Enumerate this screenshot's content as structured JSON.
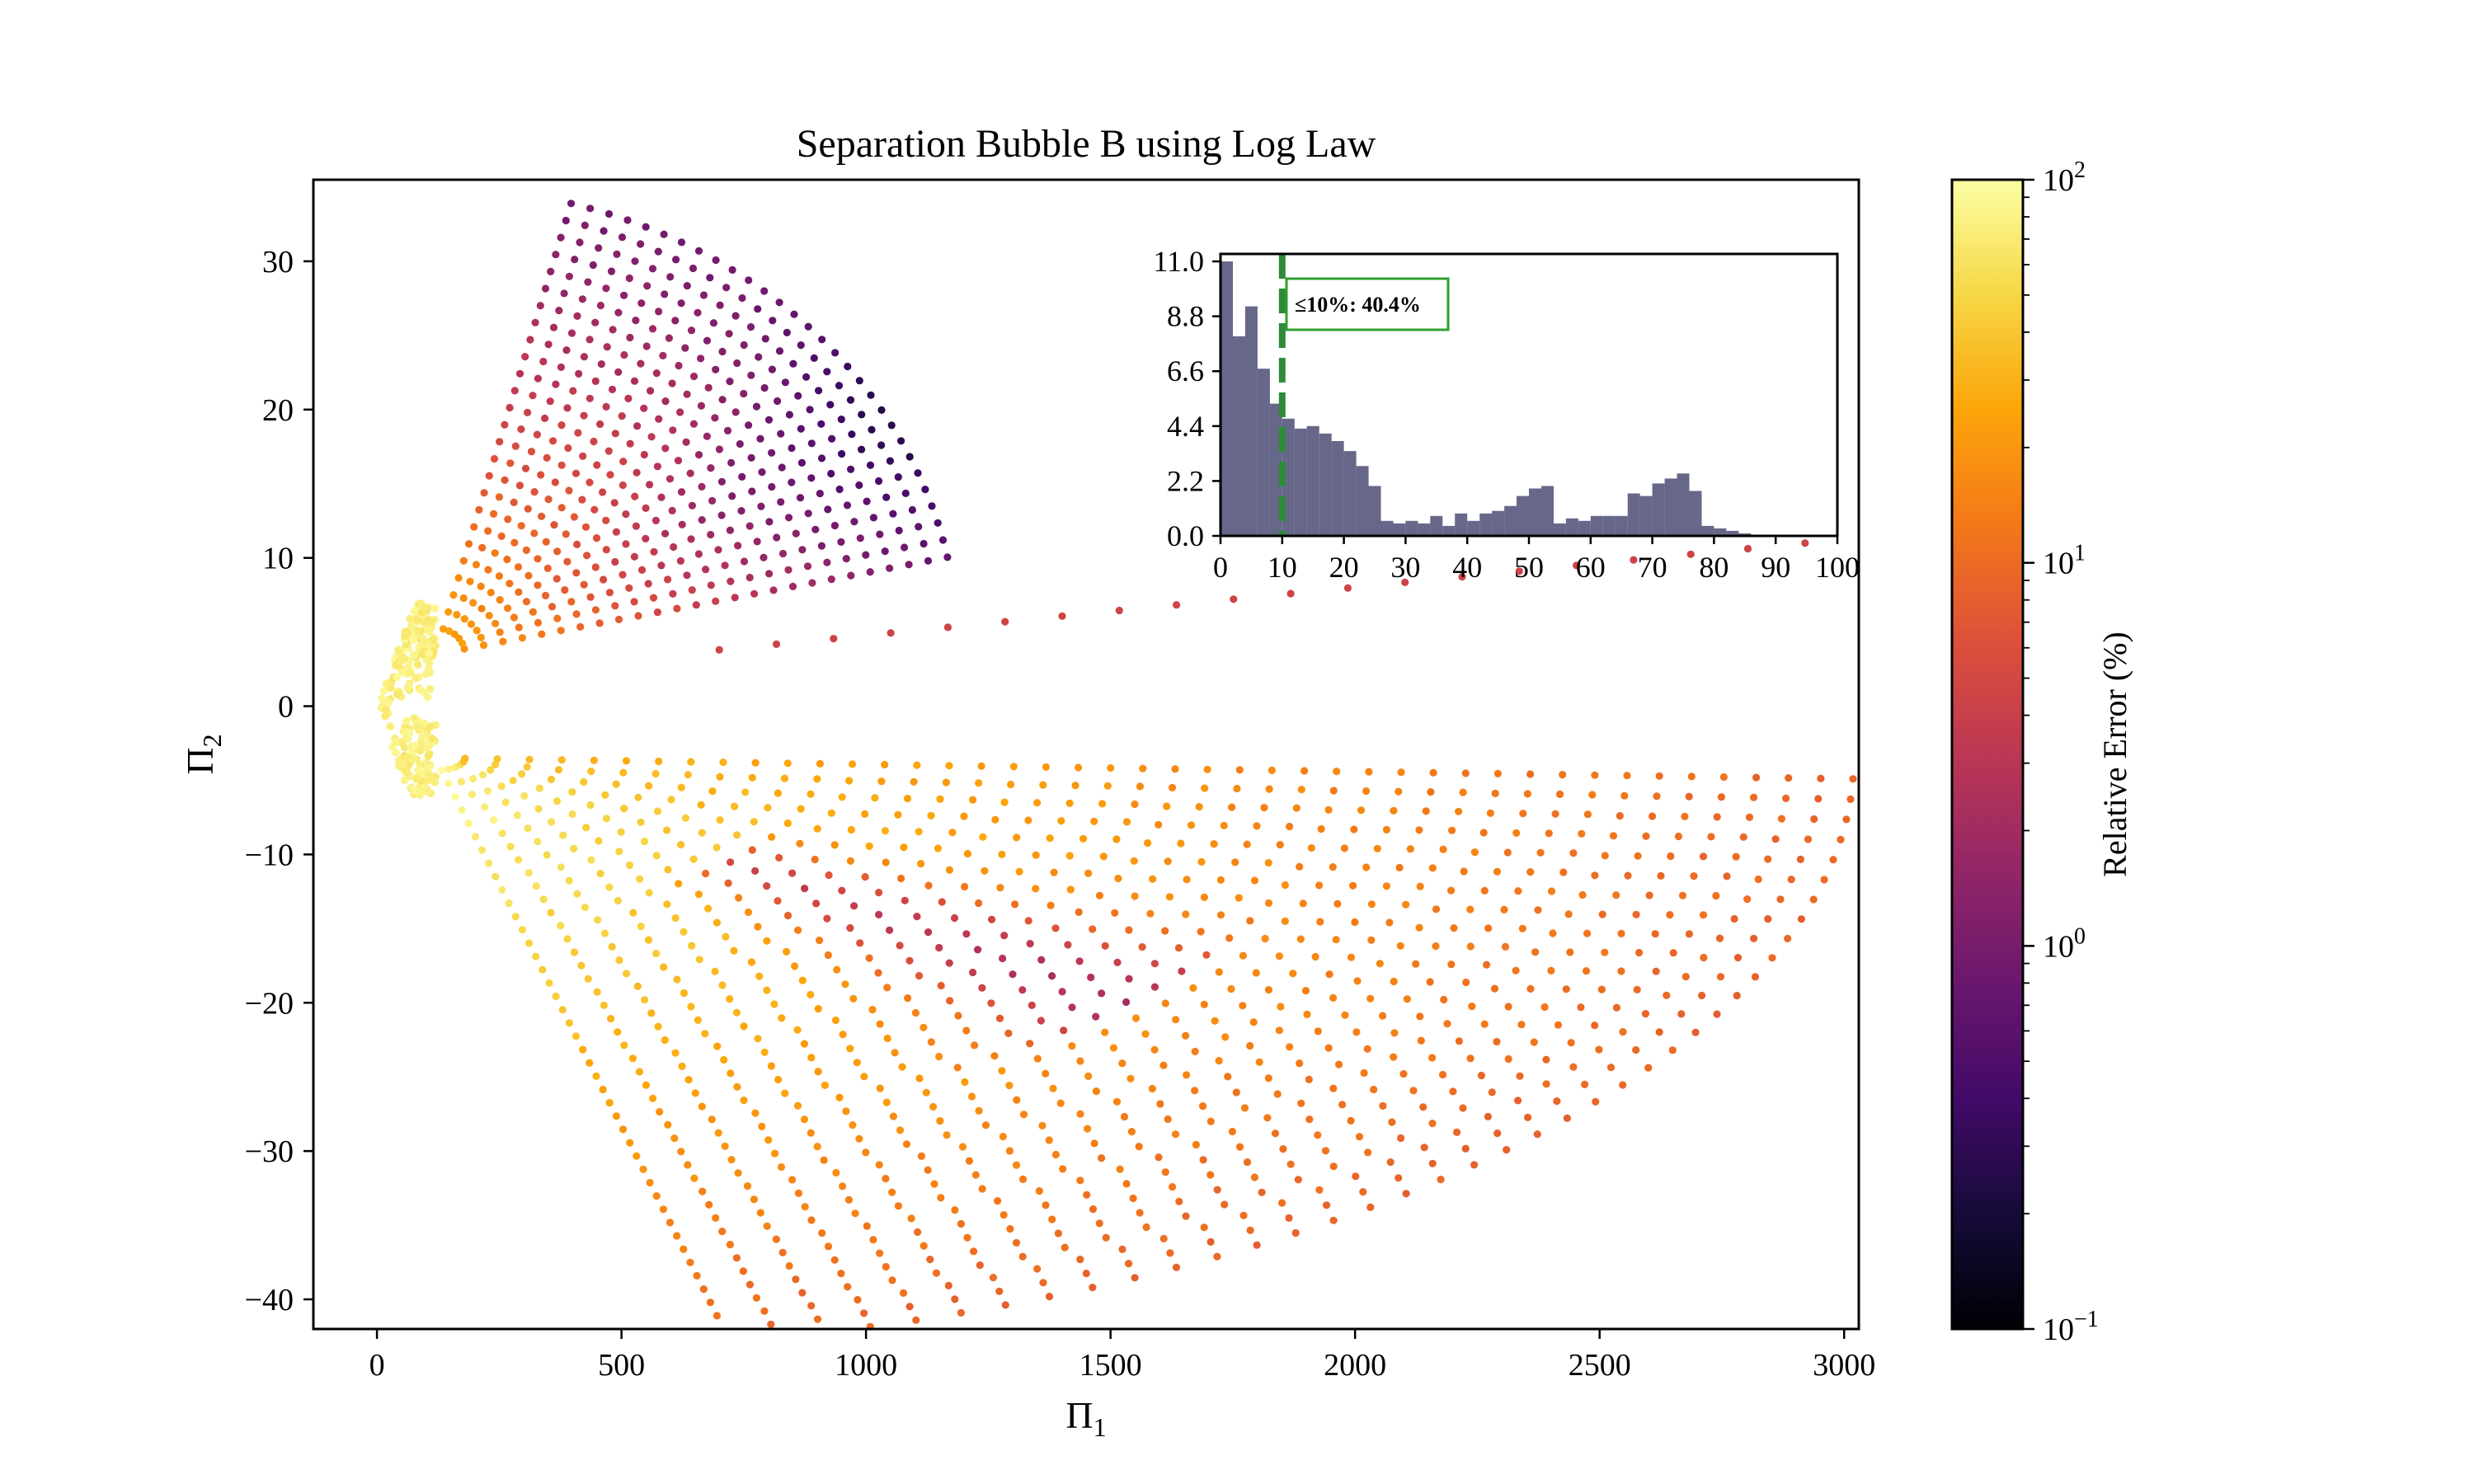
{
  "chart_data": [
    {
      "type": "scatter",
      "title": "Separation Bubble B using Log Law",
      "xlabel": "Π",
      "xlabel_sub": "1",
      "ylabel": "Π",
      "ylabel_sub": "2",
      "xlim": [
        -130,
        3030
      ],
      "ylim": [
        -42,
        35.5
      ],
      "x_ticks": [
        0,
        500,
        1000,
        1500,
        2000,
        2500,
        3000
      ],
      "x_tick_labels": [
        "0",
        "500",
        "1000",
        "1500",
        "2000",
        "2500",
        "3000"
      ],
      "y_ticks": [
        30,
        20,
        10,
        0,
        -10,
        -20,
        -30,
        -40
      ],
      "y_tick_labels": [
        "30",
        "20",
        "10",
        "0",
        "−10",
        "−20",
        "−30",
        "−40"
      ],
      "grid": false,
      "colormap": "inferno",
      "colorbar": {
        "label": "Relative Error (%)",
        "scale": "log",
        "range": [
          0.1,
          100
        ],
        "tick_labels": [
          {
            "base": "10",
            "exp": "2",
            "value": 100
          },
          {
            "base": "10",
            "exp": "1",
            "value": 10
          },
          {
            "base": "10",
            "exp": "0",
            "value": 1
          },
          {
            "base": "10",
            "exp": "−1",
            "value": 0.1
          }
        ]
      },
      "groups": [
        {
          "region": "upper-fan",
          "origin": [
            120,
            3.5
          ],
          "radii": [
            60,
            1070
          ],
          "angles_deg": [
            12,
            75
          ],
          "rings": 26,
          "points_per_ring": [
            6,
            30
          ],
          "error_range_pct": [
            0.2,
            25
          ]
        },
        {
          "region": "lower-fan",
          "origin": [
            120,
            -3.5
          ],
          "radii": [
            60,
            2900
          ],
          "angles_deg": [
            -78,
            -2
          ],
          "rings": 44,
          "points_per_ring": [
            6,
            40
          ],
          "error_range_pct": [
            0.3,
            90
          ]
        },
        {
          "region": "upper-ray",
          "x": [
            700,
            2920
          ],
          "y": [
            3.8,
            11.0
          ],
          "points": 20,
          "error_pct": 4.5
        },
        {
          "region": "near-origin",
          "x": [
            0,
            120
          ],
          "y": [
            -6,
            7
          ],
          "error_pct": 90
        }
      ]
    },
    {
      "type": "bar",
      "title": "",
      "xlabel": "",
      "ylabel": "",
      "xlim": [
        0,
        100
      ],
      "ylim": [
        0,
        11.3
      ],
      "x_ticks": [
        0,
        10,
        20,
        30,
        40,
        50,
        60,
        70,
        80,
        90,
        100
      ],
      "x_tick_labels": [
        "0",
        "10",
        "20",
        "30",
        "40",
        "50",
        "60",
        "70",
        "80",
        "90",
        "100"
      ],
      "y_ticks": [
        0.0,
        2.2,
        4.4,
        6.6,
        8.8,
        11.0
      ],
      "y_tick_labels": [
        "0.0",
        "2.2",
        "4.4",
        "6.6",
        "8.8",
        "11.0"
      ],
      "bin_width": 2,
      "bin_start": 0,
      "values": [
        11.0,
        8.0,
        9.2,
        6.7,
        5.3,
        4.7,
        4.3,
        4.4,
        4.1,
        3.8,
        3.4,
        2.8,
        2.0,
        0.6,
        0.5,
        0.6,
        0.5,
        0.8,
        0.4,
        0.9,
        0.6,
        0.9,
        1.0,
        1.2,
        1.6,
        1.9,
        2.0,
        0.5,
        0.7,
        0.6,
        0.8,
        0.8,
        0.8,
        1.7,
        1.6,
        2.1,
        2.3,
        2.5,
        1.8,
        0.4,
        0.3,
        0.2,
        0.1,
        0,
        0,
        0,
        0,
        0,
        0,
        0
      ],
      "bar_color": "#676789",
      "threshold": {
        "value": 10,
        "color": "#2ca02c",
        "label": "≤10%: 40.4%"
      }
    }
  ]
}
